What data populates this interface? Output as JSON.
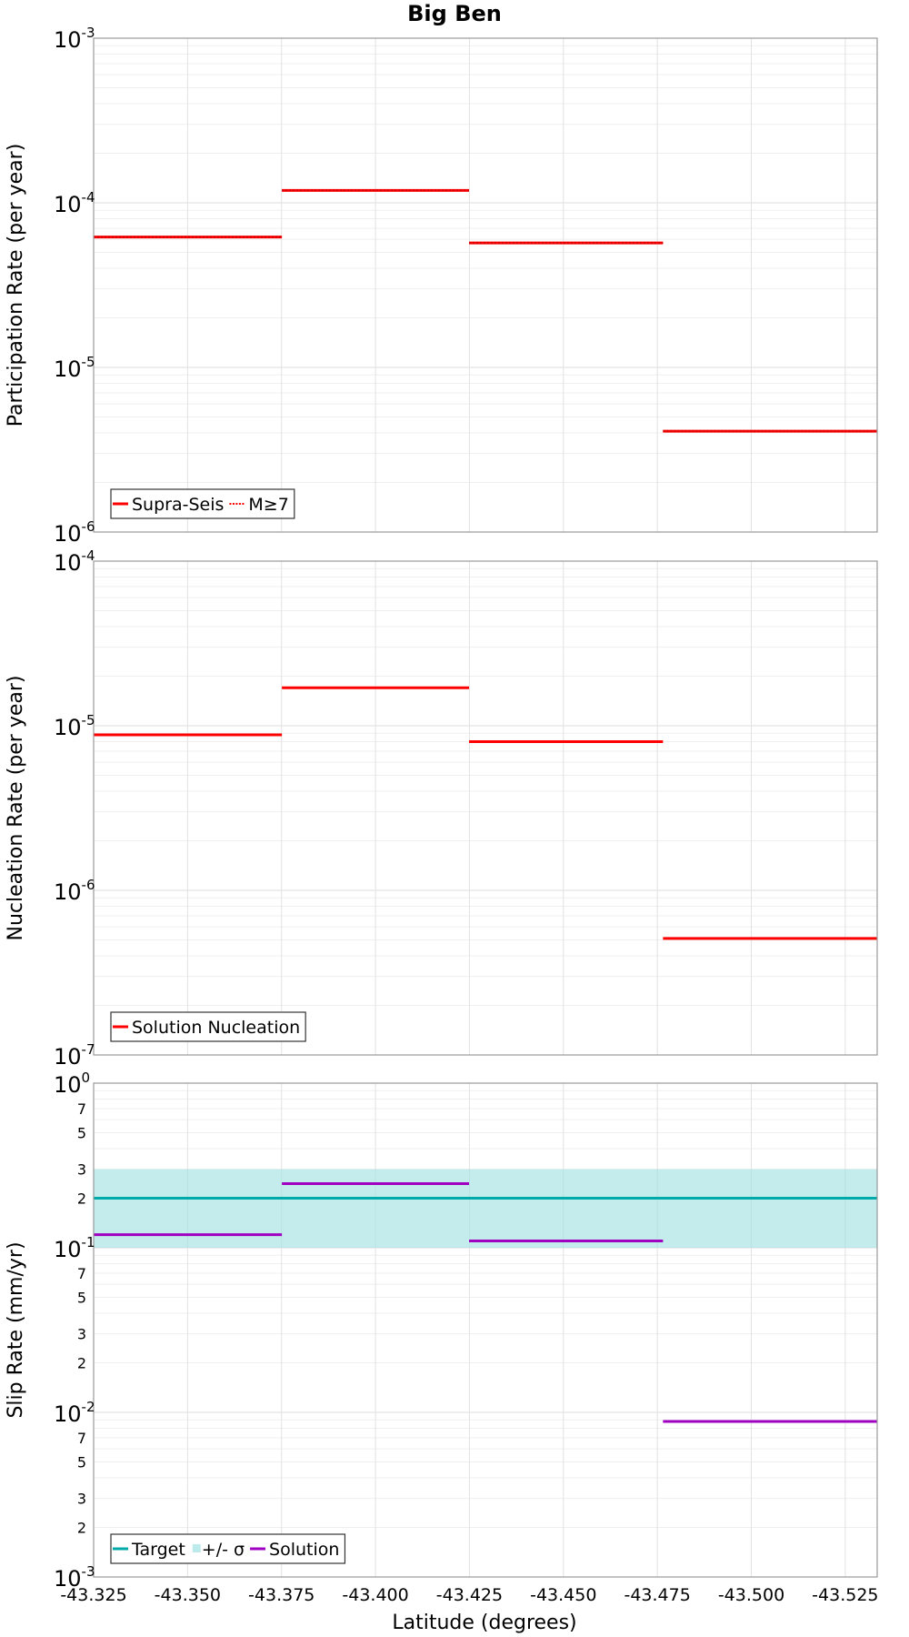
{
  "chart_data": {
    "title": "Big Ben",
    "xlabel": "Latitude (degrees)",
    "xlim": [
      -43.325,
      -43.5335
    ],
    "xticks": [
      -43.325,
      -43.35,
      -43.375,
      -43.4,
      -43.425,
      -43.45,
      -43.475,
      -43.5,
      -43.525
    ],
    "xtick_labels": [
      "-43.325",
      "-43.350",
      "-43.375",
      "-43.400",
      "-43.425",
      "-43.450",
      "-43.475",
      "-43.500",
      "-43.525"
    ],
    "grid": true,
    "panels": [
      {
        "type": "line",
        "ylabel": "Participation Rate (per year)",
        "yscale": "log",
        "ylim": [
          1e-06,
          0.001
        ],
        "major_ticks": [
          {
            "v": 1e-06,
            "b": "10",
            "e": "-6"
          },
          {
            "v": 1e-05,
            "b": "10",
            "e": "-5"
          },
          {
            "v": 0.0001,
            "b": "10",
            "e": "-4"
          },
          {
            "v": 0.001,
            "b": "10",
            "e": "-3"
          }
        ],
        "minor_labels": [],
        "legend": {
          "position": "bottom-left",
          "entries": [
            {
              "label": "Supra-Seis",
              "color": "#ff0000",
              "style": "solid"
            },
            {
              "label": "M≥7",
              "color": "#ff0000",
              "style": "dotted"
            }
          ]
        },
        "series": [
          {
            "name": "Supra-Seis",
            "color": "#ff0000",
            "style": "solid",
            "segments": [
              {
                "x": [
                  -43.325,
                  -43.3751
                ],
                "y": 6.2e-05
              },
              {
                "x": [
                  -43.3751,
                  -43.4249
                ],
                "y": 0.000119
              },
              {
                "x": [
                  -43.4249,
                  -43.4765
                ],
                "y": 5.7e-05
              },
              {
                "x": [
                  -43.4765,
                  -43.5335
                ],
                "y": 4.1e-06
              }
            ]
          },
          {
            "name": "M≥7",
            "color": "#ff0000",
            "style": "dotted",
            "segments": [
              {
                "x": [
                  -43.325,
                  -43.3751
                ],
                "y": 6.2e-05
              },
              {
                "x": [
                  -43.3751,
                  -43.4249
                ],
                "y": 0.000119
              },
              {
                "x": [
                  -43.4249,
                  -43.4765
                ],
                "y": 5.7e-05
              },
              {
                "x": [
                  -43.4765,
                  -43.5335
                ],
                "y": 4.1e-06
              }
            ]
          }
        ]
      },
      {
        "type": "line",
        "ylabel": "Nucleation Rate (per year)",
        "yscale": "log",
        "ylim": [
          1e-07,
          0.0001
        ],
        "major_ticks": [
          {
            "v": 1e-07,
            "b": "10",
            "e": "-7"
          },
          {
            "v": 1e-06,
            "b": "10",
            "e": "-6"
          },
          {
            "v": 1e-05,
            "b": "10",
            "e": "-5"
          },
          {
            "v": 0.0001,
            "b": "10",
            "e": "-4"
          }
        ],
        "minor_labels": [],
        "legend": {
          "position": "bottom-left",
          "entries": [
            {
              "label": "Solution Nucleation",
              "color": "#ff0000",
              "style": "solid"
            }
          ]
        },
        "series": [
          {
            "name": "Solution Nucleation",
            "color": "#ff0000",
            "style": "solid",
            "segments": [
              {
                "x": [
                  -43.325,
                  -43.3751
                ],
                "y": 8.8e-06
              },
              {
                "x": [
                  -43.3751,
                  -43.4249
                ],
                "y": 1.7e-05
              },
              {
                "x": [
                  -43.4249,
                  -43.4765
                ],
                "y": 8e-06
              },
              {
                "x": [
                  -43.4765,
                  -43.5335
                ],
                "y": 5.1e-07
              }
            ]
          }
        ]
      },
      {
        "type": "line",
        "ylabel": "Slip Rate (mm/yr)",
        "yscale": "log",
        "ylim": [
          0.001,
          1
        ],
        "major_ticks": [
          {
            "v": 0.001,
            "b": "10",
            "e": "-3"
          },
          {
            "v": 0.01,
            "b": "10",
            "e": "-2"
          },
          {
            "v": 0.1,
            "b": "10",
            "e": "-1"
          },
          {
            "v": 1,
            "b": "10",
            "e": "0"
          }
        ],
        "minor_labels": [
          {
            "v": 0.002,
            "t": "2"
          },
          {
            "v": 0.003,
            "t": "3"
          },
          {
            "v": 0.005,
            "t": "5"
          },
          {
            "v": 0.007,
            "t": "7"
          },
          {
            "v": 0.02,
            "t": "2"
          },
          {
            "v": 0.03,
            "t": "3"
          },
          {
            "v": 0.05,
            "t": "5"
          },
          {
            "v": 0.07,
            "t": "7"
          },
          {
            "v": 0.2,
            "t": "2"
          },
          {
            "v": 0.3,
            "t": "3"
          },
          {
            "v": 0.5,
            "t": "5"
          },
          {
            "v": 0.7,
            "t": "7"
          }
        ],
        "band": {
          "name": "+/- σ",
          "color": "#a0e1e1",
          "y": [
            0.1,
            0.3
          ],
          "x": [
            -43.325,
            -43.5335
          ]
        },
        "legend": {
          "position": "bottom-left",
          "entries": [
            {
              "label": "Target",
              "color": "#00aaaa",
              "style": "solid"
            },
            {
              "label": "+/- σ",
              "color": "#bdeaea",
              "style": "band"
            },
            {
              "label": "Solution",
              "color": "#a000c0",
              "style": "solid"
            }
          ]
        },
        "series": [
          {
            "name": "Target",
            "color": "#00aaaa",
            "style": "solid",
            "segments": [
              {
                "x": [
                  -43.325,
                  -43.5335
                ],
                "y": 0.2
              }
            ]
          },
          {
            "name": "Solution",
            "color": "#a000c0",
            "style": "solid",
            "segments": [
              {
                "x": [
                  -43.325,
                  -43.3751
                ],
                "y": 0.12
              },
              {
                "x": [
                  -43.3751,
                  -43.4249
                ],
                "y": 0.245
              },
              {
                "x": [
                  -43.4249,
                  -43.4765
                ],
                "y": 0.11
              },
              {
                "x": [
                  -43.4765,
                  -43.5335
                ],
                "y": 0.0088
              }
            ]
          }
        ]
      }
    ]
  }
}
